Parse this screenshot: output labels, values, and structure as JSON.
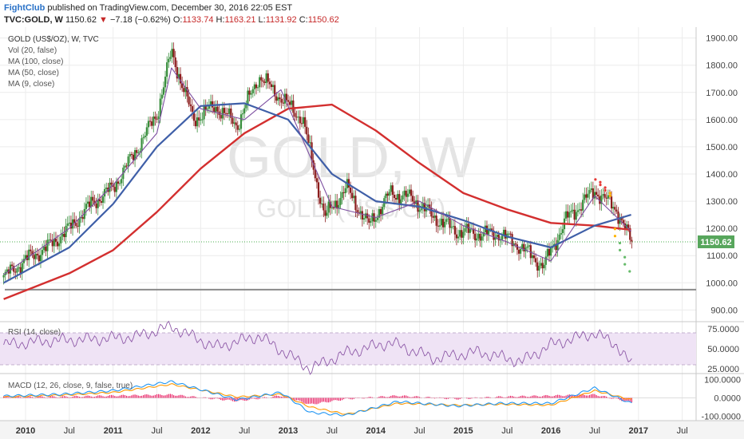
{
  "header": {
    "author": "FightClub",
    "published_text": "published on TradingView.com, December 30, 2016 22:05 EST",
    "symbol": "TVC:GOLD, W",
    "last": "1150.62",
    "arrow": "▼",
    "change": "−7.18 (−0.62%)",
    "o_label": "O:",
    "o_value": "1133.74",
    "h_label": "H:",
    "h_value": "1163.21",
    "l_label": "L:",
    "l_value": "1131.92",
    "c_label": "C:",
    "c_value": "1150.62"
  },
  "legend": {
    "title": "GOLD (US$/OZ), W, TVC",
    "items": [
      "Vol (20, false)",
      "MA (100, close)",
      "MA (50, close)",
      "MA (9, close)"
    ]
  },
  "watermark": {
    "big": "GOLD, W",
    "small": "GOLD (US$/OZ)"
  },
  "price_label": "1150.62",
  "rsi_label": "RSI (14, close)",
  "macd_label": "MACD (12, 26, close, 9, false, true)",
  "colors": {
    "ma100": "#d32f2f",
    "ma50": "#3f5fa8",
    "ma9": "#7d4ea0",
    "up": "#388e3c",
    "down": "#8b1d1d",
    "rsi": "#8e5aa8",
    "macd": "#2196f3",
    "signal": "#ff9800",
    "hist": "#e91e63"
  },
  "chart_data": [
    {
      "type": "candlestick",
      "title": "GOLD (US$/OZ), W, TVC",
      "x_ticks": [
        "2010",
        "Jul",
        "2011",
        "Jul",
        "2012",
        "Jul",
        "2013",
        "Jul",
        "2014",
        "Jul",
        "2015",
        "Jul",
        "2016",
        "Jul",
        "2017",
        "Jul"
      ],
      "y_ticks": [
        900,
        1000,
        1100,
        1200,
        1300,
        1400,
        1500,
        1600,
        1700,
        1800,
        1900
      ],
      "ylim": [
        860,
        1940
      ],
      "last_price": 1150.62,
      "horizontal_support": 975,
      "x": [
        "2009-10",
        "2010-01",
        "2010-04",
        "2010-07",
        "2010-10",
        "2011-01",
        "2011-04",
        "2011-07",
        "2011-09",
        "2011-12",
        "2012-03",
        "2012-06",
        "2012-09",
        "2012-12",
        "2013-03",
        "2013-06",
        "2013-09",
        "2013-12",
        "2014-03",
        "2014-06",
        "2014-09",
        "2014-12",
        "2015-03",
        "2015-06",
        "2015-09",
        "2015-12",
        "2016-03",
        "2016-07",
        "2016-10",
        "2016-12"
      ],
      "close": [
        1020,
        1085,
        1130,
        1200,
        1290,
        1350,
        1480,
        1620,
        1850,
        1600,
        1650,
        1580,
        1760,
        1680,
        1600,
        1240,
        1350,
        1210,
        1330,
        1310,
        1240,
        1190,
        1180,
        1180,
        1130,
        1060,
        1230,
        1340,
        1270,
        1150
      ],
      "series": [
        {
          "name": "MA (100, close)",
          "x": [
            "2009-10",
            "2010-07",
            "2011-01",
            "2011-07",
            "2012-01",
            "2012-07",
            "2013-01",
            "2013-07",
            "2014-01",
            "2014-07",
            "2015-01",
            "2015-07",
            "2016-01",
            "2016-07",
            "2016-12"
          ],
          "values": [
            940,
            1035,
            1120,
            1260,
            1420,
            1550,
            1640,
            1655,
            1560,
            1440,
            1330,
            1270,
            1220,
            1210,
            1195
          ]
        },
        {
          "name": "MA (50, close)",
          "x": [
            "2009-10",
            "2010-07",
            "2011-01",
            "2011-07",
            "2012-01",
            "2012-07",
            "2013-01",
            "2013-07",
            "2014-01",
            "2014-07",
            "2015-01",
            "2015-07",
            "2016-01",
            "2016-07",
            "2016-12"
          ],
          "values": [
            1000,
            1130,
            1290,
            1500,
            1650,
            1660,
            1600,
            1400,
            1300,
            1280,
            1230,
            1170,
            1130,
            1210,
            1250
          ]
        },
        {
          "name": "MA (9, close)",
          "x": [
            "2009-10",
            "2010-07",
            "2011-01",
            "2011-07",
            "2011-09",
            "2012-01",
            "2012-07",
            "2012-12",
            "2013-07",
            "2014-01",
            "2014-07",
            "2015-01",
            "2015-07",
            "2016-01",
            "2016-07",
            "2016-12"
          ],
          "values": [
            1030,
            1200,
            1360,
            1550,
            1790,
            1640,
            1600,
            1710,
            1280,
            1240,
            1300,
            1210,
            1150,
            1080,
            1320,
            1190
          ]
        }
      ]
    },
    {
      "type": "line",
      "title": "RSI (14, close)",
      "y_ticks": [
        25,
        50,
        75
      ],
      "ylim": [
        20,
        82
      ],
      "band": [
        30,
        70
      ],
      "x": [
        "2009-10",
        "2010-04",
        "2010-10",
        "2011-04",
        "2011-09",
        "2012-03",
        "2012-09",
        "2013-04",
        "2013-09",
        "2014-03",
        "2014-09",
        "2015-03",
        "2015-09",
        "2016-01",
        "2016-07",
        "2016-10",
        "2016-12"
      ],
      "values": [
        55,
        60,
        62,
        65,
        78,
        52,
        66,
        25,
        45,
        58,
        38,
        46,
        34,
        55,
        70,
        55,
        30
      ]
    },
    {
      "type": "line",
      "title": "MACD (12, 26, close, 9, false, true)",
      "y_ticks": [
        100,
        0,
        -100
      ],
      "ylim": [
        -125,
        125
      ],
      "x": [
        "2009-10",
        "2010-06",
        "2011-01",
        "2011-09",
        "2012-06",
        "2012-12",
        "2013-04",
        "2013-09",
        "2014-04",
        "2014-12",
        "2015-06",
        "2016-01",
        "2016-07",
        "2016-12"
      ],
      "series": [
        {
          "name": "MACD",
          "values": [
            10,
            20,
            40,
            90,
            -10,
            30,
            -80,
            -95,
            -20,
            -45,
            -30,
            -30,
            55,
            -30
          ]
        },
        {
          "name": "Signal",
          "values": [
            5,
            15,
            30,
            75,
            5,
            20,
            -50,
            -90,
            -30,
            -40,
            -35,
            -40,
            40,
            -10
          ]
        }
      ]
    }
  ]
}
